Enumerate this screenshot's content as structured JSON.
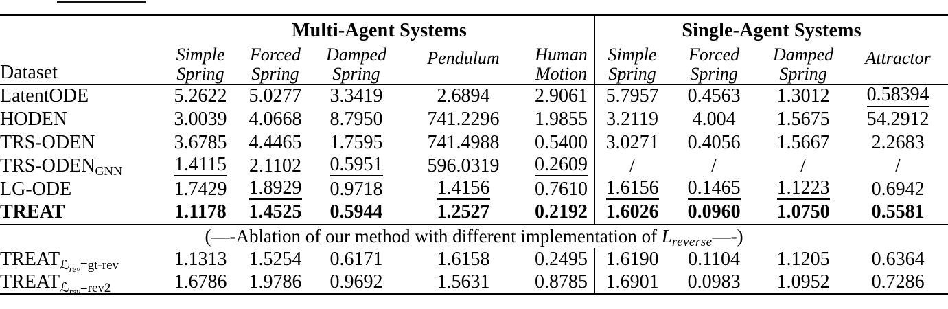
{
  "page": {
    "background": "#ffffff",
    "text_color": "#000000",
    "rule_color": "#000000"
  },
  "table": {
    "corner_header": "Dataset",
    "groups": [
      {
        "label": "Multi-Agent Systems",
        "span": 5
      },
      {
        "label": "Single-Agent Systems",
        "span": 4
      }
    ],
    "columns": [
      {
        "line1": "Simple",
        "line2": "Spring"
      },
      {
        "line1": "Forced",
        "line2": "Spring"
      },
      {
        "line1": "Damped",
        "line2": "Spring"
      },
      {
        "line1": "Pendulum"
      },
      {
        "line1": "Human",
        "line2": "Motion"
      },
      {
        "line1": "Simple",
        "line2": "Spring"
      },
      {
        "line1": "Forced",
        "line2": "Spring"
      },
      {
        "line1": "Damped",
        "line2": "Spring"
      },
      {
        "line1": "Attractor"
      }
    ],
    "body_rows": [
      {
        "label": {
          "main": "LatentODE"
        },
        "cells": [
          {
            "v": "5.2622"
          },
          {
            "v": "5.0277"
          },
          {
            "v": "3.3419"
          },
          {
            "v": "2.6894"
          },
          {
            "v": "2.9061"
          },
          {
            "v": "5.7957"
          },
          {
            "v": "0.4563"
          },
          {
            "v": "1.3012"
          },
          {
            "v": "0.58394",
            "u": true
          }
        ]
      },
      {
        "label": {
          "main": "HODEN"
        },
        "cells": [
          {
            "v": "3.0039"
          },
          {
            "v": "4.0668"
          },
          {
            "v": "8.7950"
          },
          {
            "v": "741.2296"
          },
          {
            "v": "1.9855"
          },
          {
            "v": "3.2119"
          },
          {
            "v": "4.004"
          },
          {
            "v": "1.5675"
          },
          {
            "v": "54.2912"
          }
        ]
      },
      {
        "label": {
          "main": "TRS-ODEN"
        },
        "cells": [
          {
            "v": "3.6785"
          },
          {
            "v": "4.4465"
          },
          {
            "v": "1.7595"
          },
          {
            "v": "741.4988"
          },
          {
            "v": "0.5400"
          },
          {
            "v": "3.0271"
          },
          {
            "v": "0.4056"
          },
          {
            "v": "1.5667"
          },
          {
            "v": "2.2683"
          }
        ]
      },
      {
        "label": {
          "main": "TRS-ODEN",
          "sub": "GNN"
        },
        "cells": [
          {
            "v": "1.4115",
            "u": true
          },
          {
            "v": "2.1102"
          },
          {
            "v": "0.5951",
            "u": true
          },
          {
            "v": "596.0319"
          },
          {
            "v": "0.2609",
            "u": true
          },
          {
            "v": "/"
          },
          {
            "v": "/"
          },
          {
            "v": "/"
          },
          {
            "v": "/"
          }
        ]
      },
      {
        "label": {
          "main": "LG-ODE"
        },
        "cells": [
          {
            "v": "1.7429"
          },
          {
            "v": "1.8929",
            "u": true
          },
          {
            "v": "0.9718"
          },
          {
            "v": "1.4156",
            "u": true
          },
          {
            "v": "0.7610"
          },
          {
            "v": "1.6156",
            "u": true
          },
          {
            "v": "0.1465",
            "u": true
          },
          {
            "v": "1.1223",
            "u": true
          },
          {
            "v": "0.6942"
          }
        ]
      },
      {
        "label": {
          "main": "TREAT"
        },
        "bold": true,
        "cells": [
          {
            "v": "1.1178",
            "b": true
          },
          {
            "v": "1.4525",
            "b": true
          },
          {
            "v": "0.5944",
            "b": true
          },
          {
            "v": "1.2527",
            "b": true
          },
          {
            "v": "0.2192",
            "b": true
          },
          {
            "v": "1.6026",
            "b": true
          },
          {
            "v": "0.0960",
            "b": true
          },
          {
            "v": "1.0750",
            "b": true
          },
          {
            "v": "0.5581",
            "b": true
          }
        ]
      }
    ],
    "ablation_note": {
      "prefix": "(—-Ablation of our method with different implementation of ",
      "math_main": "L",
      "math_sub": "reverse",
      "suffix": "—-)"
    },
    "ablation_rows": [
      {
        "label": {
          "main": "TREAT",
          "loss_sub": {
            "cal": "ℒ",
            "sub": "rev",
            "eq": "=gt-rev"
          }
        },
        "cells": [
          {
            "v": "1.1313"
          },
          {
            "v": "1.5254"
          },
          {
            "v": "0.6171"
          },
          {
            "v": "1.6158"
          },
          {
            "v": "0.2495"
          },
          {
            "v": "1.6190"
          },
          {
            "v": "0.1104"
          },
          {
            "v": "1.1205"
          },
          {
            "v": "0.6364"
          }
        ]
      },
      {
        "label": {
          "main": "TREAT",
          "loss_sub": {
            "cal": "ℒ",
            "sub": "rev",
            "eq": "=rev2"
          }
        },
        "cells": [
          {
            "v": "1.6786"
          },
          {
            "v": "1.9786"
          },
          {
            "v": "0.9692"
          },
          {
            "v": "1.5631"
          },
          {
            "v": "0.8785"
          },
          {
            "v": "1.6901"
          },
          {
            "v": "0.0983"
          },
          {
            "v": "1.0952"
          },
          {
            "v": "0.7286"
          }
        ]
      }
    ]
  }
}
